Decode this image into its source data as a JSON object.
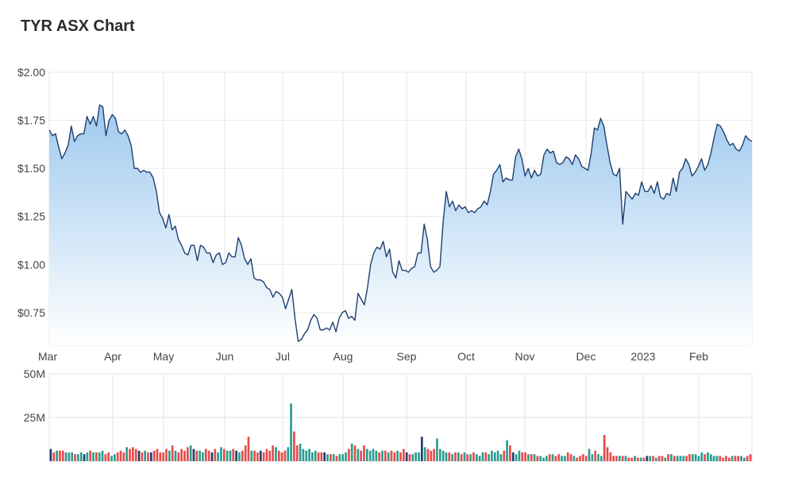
{
  "title": "TYR ASX Chart",
  "colors": {
    "line": "#1f3f70",
    "area_top": "#9ec9ee",
    "area_bottom": "#ffffff",
    "vol_up": "#2a9d8f",
    "vol_down": "#e84a4a",
    "vol_neutral": "#1f3f70",
    "grid": "#e6e6e6"
  },
  "chart_data": [
    {
      "type": "area",
      "name": "price",
      "xlabel": "",
      "ylabel": "",
      "ylim": [
        0.58,
        2.0
      ],
      "y_ticks": [
        "$2.00",
        "$1.75",
        "$1.50",
        "$1.25",
        "$1.00",
        "$0.75"
      ],
      "x_ticks": [
        "Mar",
        "Apr",
        "May",
        "Jun",
        "Jul",
        "Aug",
        "Sep",
        "Oct",
        "Nov",
        "Dec",
        "2023",
        "Feb"
      ],
      "grid": true,
      "values": [
        1.7,
        1.67,
        1.68,
        1.61,
        1.55,
        1.58,
        1.62,
        1.72,
        1.64,
        1.67,
        1.68,
        1.68,
        1.77,
        1.73,
        1.77,
        1.72,
        1.83,
        1.82,
        1.67,
        1.75,
        1.78,
        1.76,
        1.69,
        1.68,
        1.7,
        1.67,
        1.62,
        1.5,
        1.5,
        1.48,
        1.49,
        1.48,
        1.48,
        1.45,
        1.38,
        1.27,
        1.24,
        1.19,
        1.26,
        1.18,
        1.2,
        1.13,
        1.1,
        1.06,
        1.05,
        1.1,
        1.1,
        1.02,
        1.1,
        1.09,
        1.06,
        1.06,
        1.01,
        1.05,
        1.06,
        1.0,
        1.01,
        1.06,
        1.04,
        1.04,
        1.14,
        1.1,
        1.03,
        1.0,
        1.03,
        0.93,
        0.92,
        0.92,
        0.91,
        0.88,
        0.87,
        0.83,
        0.86,
        0.85,
        0.83,
        0.77,
        0.82,
        0.87,
        0.72,
        0.6,
        0.61,
        0.64,
        0.66,
        0.71,
        0.74,
        0.72,
        0.66,
        0.66,
        0.67,
        0.66,
        0.7,
        0.65,
        0.72,
        0.75,
        0.76,
        0.72,
        0.73,
        0.71,
        0.85,
        0.82,
        0.79,
        0.88,
        1.0,
        1.06,
        1.09,
        1.08,
        1.12,
        1.04,
        1.08,
        0.96,
        0.93,
        1.02,
        0.97,
        0.97,
        0.96,
        0.98,
        0.99,
        1.06,
        1.06,
        1.21,
        1.13,
        0.99,
        0.96,
        0.97,
        0.99,
        1.22,
        1.38,
        1.3,
        1.33,
        1.28,
        1.31,
        1.29,
        1.3,
        1.27,
        1.28,
        1.27,
        1.29,
        1.3,
        1.33,
        1.31,
        1.38,
        1.47,
        1.49,
        1.52,
        1.43,
        1.45,
        1.44,
        1.44,
        1.56,
        1.6,
        1.55,
        1.46,
        1.5,
        1.45,
        1.49,
        1.46,
        1.47,
        1.57,
        1.6,
        1.58,
        1.59,
        1.53,
        1.52,
        1.53,
        1.56,
        1.55,
        1.52,
        1.57,
        1.55,
        1.51,
        1.5,
        1.49,
        1.58,
        1.71,
        1.7,
        1.76,
        1.72,
        1.62,
        1.53,
        1.47,
        1.46,
        1.5,
        1.21,
        1.38,
        1.36,
        1.34,
        1.37,
        1.36,
        1.43,
        1.38,
        1.38,
        1.41,
        1.37,
        1.43,
        1.35,
        1.34,
        1.37,
        1.36,
        1.45,
        1.38,
        1.48,
        1.5,
        1.55,
        1.52,
        1.46,
        1.48,
        1.51,
        1.55,
        1.49,
        1.52,
        1.58,
        1.66,
        1.73,
        1.72,
        1.69,
        1.65,
        1.62,
        1.63,
        1.6,
        1.59,
        1.62,
        1.67,
        1.65,
        1.64
      ]
    },
    {
      "type": "bar",
      "name": "volume",
      "ylim": [
        0,
        50000000
      ],
      "y_ticks": [
        "50M",
        "25M"
      ],
      "grid": true,
      "values": [
        7,
        5,
        6,
        6,
        6,
        5,
        5,
        5,
        4,
        4,
        5,
        4,
        5,
        6,
        5,
        5,
        5,
        6,
        4,
        5,
        3,
        4,
        5,
        6,
        5,
        8,
        7,
        8,
        7,
        6,
        5,
        6,
        5,
        5,
        6,
        7,
        5,
        5,
        7,
        6,
        9,
        6,
        5,
        7,
        6,
        8,
        9,
        7,
        6,
        6,
        5,
        7,
        6,
        5,
        7,
        5,
        8,
        7,
        6,
        6,
        7,
        6,
        5,
        6,
        9,
        14,
        6,
        6,
        5,
        6,
        5,
        7,
        6,
        9,
        8,
        6,
        5,
        6,
        8,
        33,
        17,
        9,
        10,
        7,
        6,
        7,
        5,
        6,
        5,
        5,
        5,
        4,
        4,
        4,
        3,
        4,
        4,
        5,
        7,
        10,
        9,
        7,
        6,
        9,
        7,
        6,
        7,
        6,
        5,
        6,
        6,
        5,
        6,
        5,
        6,
        5,
        7,
        5,
        4,
        4,
        5,
        5,
        14,
        8,
        7,
        6,
        7,
        13,
        7,
        6,
        5,
        5,
        4,
        5,
        5,
        4,
        5,
        4,
        4,
        5,
        4,
        3,
        5,
        5,
        4,
        6,
        5,
        6,
        4,
        6,
        12,
        9,
        5,
        4,
        6,
        5,
        5,
        4,
        4,
        4,
        3,
        3,
        2,
        3,
        4,
        4,
        3,
        4,
        3,
        3,
        5,
        4,
        3,
        2,
        3,
        4,
        3,
        7,
        4,
        6,
        4,
        3,
        15,
        8,
        5,
        3,
        3,
        3,
        3,
        3,
        2,
        2,
        3,
        2,
        2,
        2,
        3,
        3,
        3,
        2,
        3,
        3,
        2,
        4,
        4,
        3,
        3,
        3,
        3,
        3,
        4,
        4,
        4,
        3,
        5,
        4,
        5,
        4,
        3,
        3,
        3,
        2,
        3,
        2,
        3,
        3,
        3,
        3,
        2,
        3,
        4
      ]
    }
  ]
}
